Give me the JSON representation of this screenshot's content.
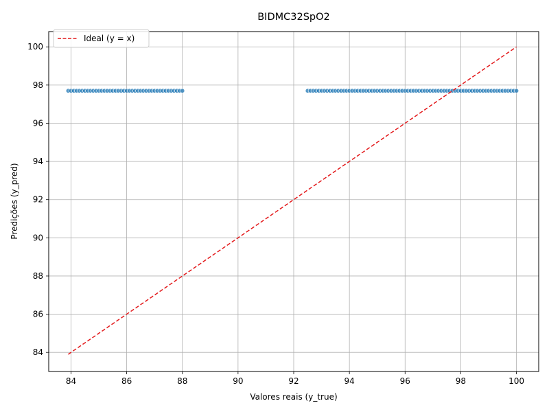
{
  "chart_data": {
    "type": "scatter",
    "title": "BIDMC32SpO2",
    "xlabel": "Valores reais (y_true)",
    "ylabel": "Predições (y_pred)",
    "xlim": [
      83.2,
      100.8
    ],
    "ylim": [
      83.0,
      100.8
    ],
    "xticks": [
      84,
      86,
      88,
      90,
      92,
      94,
      96,
      98,
      100
    ],
    "yticks": [
      84,
      86,
      88,
      90,
      92,
      94,
      96,
      98,
      100
    ],
    "grid": true,
    "legend_position": "top-left",
    "series": [
      {
        "kind": "scatter",
        "color": "#1f77b4",
        "x": [
          83.9,
          84.0,
          84.1,
          84.2,
          84.3,
          84.4,
          84.5,
          84.6,
          84.7,
          84.8,
          84.9,
          85.0,
          85.1,
          85.2,
          85.3,
          85.4,
          85.5,
          85.6,
          85.7,
          85.8,
          85.9,
          86.0,
          86.1,
          86.2,
          86.3,
          86.4,
          86.5,
          86.6,
          86.7,
          86.8,
          86.9,
          87.0,
          87.1,
          87.2,
          87.3,
          87.4,
          87.5,
          87.6,
          87.7,
          87.8,
          87.9,
          88.0,
          92.5,
          92.6,
          92.7,
          92.8,
          92.9,
          93.0,
          93.1,
          93.2,
          93.3,
          93.4,
          93.5,
          93.6,
          93.7,
          93.8,
          93.9,
          94.0,
          94.1,
          94.2,
          94.3,
          94.4,
          94.5,
          94.6,
          94.7,
          94.8,
          94.9,
          95.0,
          95.1,
          95.2,
          95.3,
          95.4,
          95.5,
          95.6,
          95.7,
          95.8,
          95.9,
          96.0,
          96.1,
          96.2,
          96.3,
          96.4,
          96.5,
          96.6,
          96.7,
          96.8,
          96.9,
          97.0,
          97.1,
          97.2,
          97.3,
          97.4,
          97.5,
          97.6,
          97.7,
          97.8,
          97.9,
          98.0,
          98.1,
          98.2,
          98.3,
          98.4,
          98.5,
          98.6,
          98.7,
          98.8,
          98.9,
          99.0,
          99.1,
          99.2,
          99.3,
          99.4,
          99.5,
          99.6,
          99.7,
          99.8,
          99.9,
          100.0
        ],
        "y": 97.7
      },
      {
        "kind": "line",
        "name": "Ideal (y = x)",
        "color": "#e31a1c",
        "dashed": true,
        "x": [
          83.9,
          100.0
        ],
        "y": [
          83.9,
          100.0
        ]
      }
    ]
  }
}
